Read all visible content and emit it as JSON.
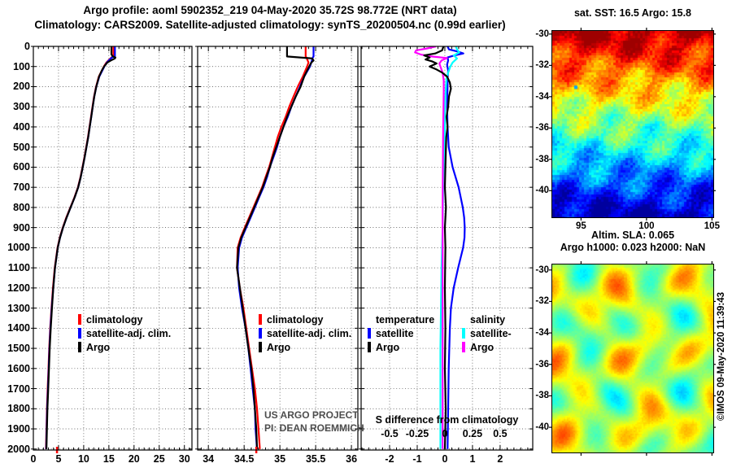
{
  "title": {
    "line1": "Argo profile: aoml 5902352_219 04-May-2020 35.72S 98.772E (NRT data)",
    "line2": "Climatology: CARS2009. Satellite-adjusted climatology: synTS_20200504.nc (0.99d earlier)"
  },
  "right_column": {
    "sst_header": "sat. SST: 16.5 Argo: 15.8",
    "sla_line1": "Altim. SLA: 0.065",
    "sla_line2": "Argo h1000: 0.023 h2000: NaN",
    "copyright": "©IMOS 09-May-2020 11:39:43"
  },
  "annotations": {
    "project_line1": "US ARGO PROJECT",
    "project_line2": "PI: DEAN ROEMMICH",
    "project_color": "#4d4d4d",
    "s_diff_title": "S difference from climatology",
    "s_diff_ticks": [
      "-0.5",
      "-0.25",
      "0",
      "0.25",
      "0.5"
    ],
    "s_diff_tick_values": [
      -0.5,
      -0.25,
      0,
      0.25,
      0.5
    ]
  },
  "colors": {
    "climatology": "#ff0000",
    "satellite_adjusted": "#0000ff",
    "argo": "#000000",
    "salinity_satellite": "#00ffff",
    "salinity_argo": "#ff00ff"
  },
  "chart_data": [
    {
      "id": "temperature-profile",
      "type": "line",
      "xlim": [
        0,
        31.5
      ],
      "xticks": [
        0,
        5,
        10,
        15,
        20,
        25,
        30
      ],
      "xtick_labels": [
        "0",
        "5",
        "10",
        "15",
        "20",
        "25",
        "30"
      ],
      "x_minor_step": 1,
      "ylim": [
        0,
        2005
      ],
      "yticks": [
        0,
        100,
        200,
        300,
        400,
        500,
        600,
        700,
        800,
        900,
        1000,
        1100,
        1200,
        1300,
        1400,
        1500,
        1600,
        1700,
        1800,
        1900,
        2000
      ],
      "ytick_labels": [
        "0",
        "100",
        "200",
        "300",
        "400",
        "500",
        "600",
        "700",
        "800",
        "900",
        "1000",
        "1100",
        "1200",
        "1300",
        "1400",
        "1500",
        "1600",
        "1700",
        "1800",
        "1900",
        "2000"
      ],
      "axis_marker": {
        "value": 4.7,
        "color": "#ff0000"
      },
      "legend": {
        "items": [
          {
            "label": "climatology",
            "color": "#ff0000"
          },
          {
            "label": "satellite-adj. clim.",
            "color": "#0000ff"
          },
          {
            "label": "Argo",
            "color": "#000000"
          }
        ]
      },
      "series": [
        {
          "name": "climatology",
          "color": "#ff0000",
          "depth": [
            0,
            50,
            55,
            80,
            100,
            150,
            200,
            250,
            300,
            350,
            400,
            450,
            500,
            550,
            600,
            650,
            700,
            750,
            800,
            850,
            900,
            950,
            1000,
            1100,
            1200,
            1300,
            1400,
            1500,
            1600,
            1700,
            1800,
            1900,
            2000
          ],
          "values": [
            15.9,
            15.9,
            15.5,
            14.5,
            14.0,
            13.0,
            12.45,
            12.05,
            11.75,
            11.45,
            11.15,
            10.85,
            10.5,
            10.15,
            9.75,
            9.35,
            8.85,
            8.15,
            7.35,
            6.55,
            5.85,
            5.25,
            4.8,
            4.25,
            3.9,
            3.6,
            3.35,
            3.15,
            3.0,
            2.85,
            2.7,
            2.6,
            2.5
          ]
        },
        {
          "name": "satellite-adj. clim.",
          "color": "#0000ff",
          "depth": [
            0,
            50,
            55,
            80,
            100,
            150,
            200,
            250,
            300,
            350,
            400,
            450,
            500,
            550,
            600,
            650,
            700,
            750,
            800,
            850,
            900,
            950,
            1000,
            1100,
            1200,
            1300,
            1400,
            1500,
            1600,
            1700,
            1800,
            1900,
            2000
          ],
          "values": [
            16.2,
            16.2,
            15.6,
            14.6,
            14.1,
            13.1,
            12.5,
            12.1,
            11.8,
            11.5,
            11.2,
            10.9,
            10.55,
            10.2,
            9.8,
            9.4,
            8.9,
            8.2,
            7.4,
            6.6,
            5.9,
            5.3,
            4.85,
            4.3,
            3.95,
            3.65,
            3.4,
            3.2,
            3.05,
            2.9,
            2.75,
            2.65,
            2.55
          ]
        },
        {
          "name": "Argo",
          "color": "#000000",
          "depth": [
            0,
            40,
            50,
            55,
            60,
            70,
            80,
            100,
            120,
            150,
            200,
            250,
            300,
            350,
            400,
            450,
            500,
            550,
            600,
            650,
            700,
            750,
            800,
            850,
            900,
            950,
            1000,
            1100,
            1200,
            1300,
            1400,
            1500,
            1600,
            1700,
            1800,
            1900,
            2000
          ],
          "values": [
            15.5,
            15.5,
            15.8,
            16.3,
            16.2,
            15.4,
            14.7,
            14.05,
            13.6,
            13.05,
            12.5,
            12.1,
            11.8,
            11.5,
            11.2,
            10.9,
            10.55,
            10.2,
            9.8,
            9.4,
            8.9,
            8.2,
            7.4,
            6.6,
            5.9,
            5.3,
            4.85,
            4.3,
            3.95,
            3.7,
            3.45,
            3.25,
            3.1,
            2.95,
            2.8,
            2.7,
            2.6
          ]
        }
      ]
    },
    {
      "id": "salinity-profile",
      "type": "line",
      "xlim": [
        33.85,
        36.09
      ],
      "xticks": [
        34,
        34.5,
        35,
        35.5,
        36
      ],
      "xtick_labels": [
        "34",
        "34.5",
        "35",
        "35.5",
        "36"
      ],
      "x_minor_step": 0.1,
      "ylim": [
        0,
        2005
      ],
      "yticks": [
        0,
        100,
        200,
        300,
        400,
        500,
        600,
        700,
        800,
        900,
        1000,
        1100,
        1200,
        1300,
        1400,
        1500,
        1600,
        1700,
        1800,
        1900,
        2000
      ],
      "axis_marker": {
        "value": 34.67,
        "color": "#ff0000"
      },
      "legend": {
        "items": [
          {
            "label": "climatology",
            "color": "#ff0000"
          },
          {
            "label": "satellite-adj. clim.",
            "color": "#0000ff"
          },
          {
            "label": "Argo",
            "color": "#000000"
          }
        ]
      },
      "annotation_lines": [
        "US ARGO PROJECT",
        "PI: DEAN ROEMMICH"
      ],
      "series": [
        {
          "name": "climatology",
          "color": "#ff0000",
          "depth": [
            0,
            50,
            55,
            80,
            100,
            150,
            200,
            250,
            300,
            350,
            400,
            450,
            500,
            550,
            600,
            650,
            700,
            750,
            800,
            850,
            900,
            950,
            1000,
            1100,
            1200,
            1300,
            1400,
            1500,
            1600,
            1700,
            1800,
            1900,
            2000
          ],
          "values": [
            35.36,
            35.36,
            35.37,
            35.4,
            35.38,
            35.32,
            35.25,
            35.19,
            35.13,
            35.08,
            35.02,
            34.97,
            34.93,
            34.89,
            34.85,
            34.8,
            34.75,
            34.69,
            34.63,
            34.57,
            34.51,
            34.45,
            34.41,
            34.4,
            34.44,
            34.49,
            34.53,
            34.57,
            34.61,
            34.65,
            34.68,
            34.7,
            34.72
          ]
        },
        {
          "name": "satellite-adj. clim.",
          "color": "#0000ff",
          "depth": [
            0,
            50,
            55,
            80,
            100,
            150,
            200,
            250,
            300,
            350,
            400,
            450,
            500,
            550,
            600,
            650,
            700,
            750,
            800,
            850,
            900,
            950,
            1000,
            1100,
            1200,
            1300,
            1400,
            1500,
            1600,
            1700,
            1800,
            1900,
            2000
          ],
          "values": [
            35.47,
            35.47,
            35.46,
            35.44,
            35.42,
            35.34,
            35.28,
            35.22,
            35.16,
            35.11,
            35.05,
            35.0,
            34.96,
            34.91,
            34.86,
            34.82,
            34.77,
            34.71,
            34.65,
            34.59,
            34.53,
            34.47,
            34.43,
            34.41,
            34.43,
            34.47,
            34.52,
            34.56,
            34.59,
            34.62,
            34.65,
            34.66,
            34.68
          ]
        },
        {
          "name": "Argo",
          "color": "#000000",
          "depth": [
            0,
            40,
            50,
            55,
            60,
            70,
            80,
            100,
            120,
            150,
            200,
            250,
            300,
            350,
            400,
            450,
            500,
            550,
            600,
            650,
            700,
            750,
            800,
            850,
            900,
            950,
            1000,
            1100,
            1200,
            1300,
            1400,
            1500,
            1600,
            1700,
            1800,
            1900,
            2000
          ],
          "values": [
            35.1,
            35.1,
            35.1,
            35.28,
            35.45,
            35.47,
            35.44,
            35.41,
            35.38,
            35.34,
            35.29,
            35.22,
            35.16,
            35.1,
            35.05,
            35.0,
            34.95,
            34.9,
            34.86,
            34.81,
            34.76,
            34.7,
            34.64,
            34.58,
            34.52,
            34.46,
            34.42,
            34.4,
            34.44,
            34.48,
            34.52,
            34.56,
            34.6,
            34.63,
            34.65,
            34.67,
            34.68
          ]
        }
      ]
    },
    {
      "id": "difference-profile",
      "type": "line",
      "xlim": [
        -3.03,
        3.18
      ],
      "xticks": [
        -2,
        -1,
        0,
        1,
        2
      ],
      "xtick_labels": [
        "-2",
        "-1",
        "0",
        "1",
        "2"
      ],
      "x_minor_step": 0.25,
      "ylim": [
        0,
        2005
      ],
      "yticks": [
        0,
        100,
        200,
        300,
        400,
        500,
        600,
        700,
        800,
        900,
        1000,
        1100,
        1200,
        1300,
        1400,
        1500,
        1600,
        1700,
        1800,
        1900,
        2000
      ],
      "s_axis_scale": 4,
      "legend_groups": [
        {
          "header": "temperature",
          "items": [
            {
              "label": "satellite",
              "color": "#0000ff"
            },
            {
              "label": "Argo",
              "color": "#000000"
            }
          ]
        },
        {
          "header": "salinity",
          "items": [
            {
              "label": "satellite-",
              "color": "#00ffff"
            },
            {
              "label": "Argo",
              "color": "#ff00ff"
            }
          ]
        }
      ],
      "series": [
        {
          "name": "temperature satellite diff",
          "color": "#0000ff",
          "x_scale": 1,
          "depth": [
            0,
            15,
            25,
            35,
            45,
            55,
            70,
            90,
            120,
            160,
            200,
            300,
            400,
            500,
            600,
            700,
            800,
            850,
            900,
            950,
            1000,
            1100,
            1200,
            1300,
            1400,
            1600,
            1800,
            2000
          ],
          "values": [
            0.1,
            0.15,
            0.45,
            0.67,
            0.35,
            0.1,
            0.12,
            0.08,
            0.12,
            0.1,
            0.1,
            0.08,
            0.1,
            0.14,
            0.28,
            0.5,
            0.65,
            0.7,
            0.72,
            0.71,
            0.66,
            0.48,
            0.32,
            0.22,
            0.18,
            0.14,
            0.12,
            0.1
          ]
        },
        {
          "name": "salinity satellite diff",
          "color": "#00ffff",
          "x_scale": 4,
          "depth": [
            0,
            15,
            30,
            45,
            60,
            80,
            100,
            130,
            160,
            200,
            300,
            400,
            500,
            700,
            900,
            1100,
            1300,
            1500,
            1700,
            2000
          ],
          "values": [
            0.1,
            0.11,
            0.13,
            0.08,
            0.11,
            0.07,
            0.05,
            0.03,
            0.015,
            0.01,
            0.0,
            0.0,
            -0.005,
            -0.015,
            -0.02,
            -0.03,
            -0.035,
            -0.04,
            -0.04,
            -0.04
          ]
        },
        {
          "name": "salinity Argo diff",
          "color": "#ff00ff",
          "x_scale": 4,
          "depth": [
            0,
            10,
            20,
            30,
            40,
            50,
            58,
            70,
            85,
            100,
            130,
            170,
            220,
            300,
            400,
            600,
            800,
            1000,
            1300,
            1600,
            2000
          ],
          "values": [
            -0.08,
            -0.16,
            -0.26,
            -0.27,
            -0.22,
            -0.12,
            0.02,
            -0.03,
            -0.05,
            -0.04,
            -0.02,
            -0.01,
            -0.01,
            -0.012,
            -0.015,
            -0.018,
            -0.02,
            -0.02,
            -0.02,
            -0.02,
            -0.02
          ]
        },
        {
          "name": "temperature Argo diff",
          "color": "#000000",
          "x_scale": 1,
          "depth": [
            0,
            20,
            35,
            45,
            55,
            65,
            75,
            85,
            100,
            115,
            130,
            150,
            180,
            210,
            250,
            300,
            350,
            400,
            450,
            500,
            600,
            700,
            800,
            900,
            1000,
            1200,
            1400,
            1600,
            1800,
            2000
          ],
          "values": [
            -0.05,
            -0.1,
            -0.35,
            -0.75,
            -0.55,
            -0.7,
            -0.45,
            -0.3,
            -0.55,
            -0.3,
            -0.1,
            0.08,
            0.18,
            0.22,
            0.15,
            0.12,
            0.06,
            0.1,
            0.05,
            0.04,
            0.02,
            0.0,
            0.04,
            0.0,
            0.02,
            0.0,
            0.02,
            0.0,
            0.03,
            0.0
          ]
        }
      ]
    },
    {
      "id": "sst-map",
      "type": "heatmap",
      "description": "satellite SST field, warm (dark red) in north grading to cold (dark blue) in south",
      "xlim": [
        92.8,
        105.1
      ],
      "xticks": [
        95,
        100,
        105
      ],
      "xtick_labels": [
        "95",
        "100",
        "105"
      ],
      "show_x_labels": true,
      "ylim": [
        -29.8,
        -41.7
      ],
      "yticks": [
        -30,
        -32,
        -34,
        -36,
        -38,
        -40
      ],
      "palette": "jet",
      "render": "blocky",
      "marker": {
        "lon": 94.6,
        "lat": -33.4,
        "color": "#00aaff"
      }
    },
    {
      "id": "sla-map",
      "type": "heatmap",
      "description": "altimetric sea level anomaly field, mostly green/yellow with local orange highs and cyan lows",
      "xlim": [
        92.8,
        105.1
      ],
      "xticks": [
        95,
        100,
        105
      ],
      "xtick_labels": [
        "95",
        "100",
        "105"
      ],
      "show_x_labels": false,
      "ylim": [
        -29.65,
        -41.6
      ],
      "yticks": [
        -30,
        -32,
        -34,
        -36,
        -38,
        -40
      ],
      "palette": "jet",
      "render": "smooth"
    }
  ]
}
